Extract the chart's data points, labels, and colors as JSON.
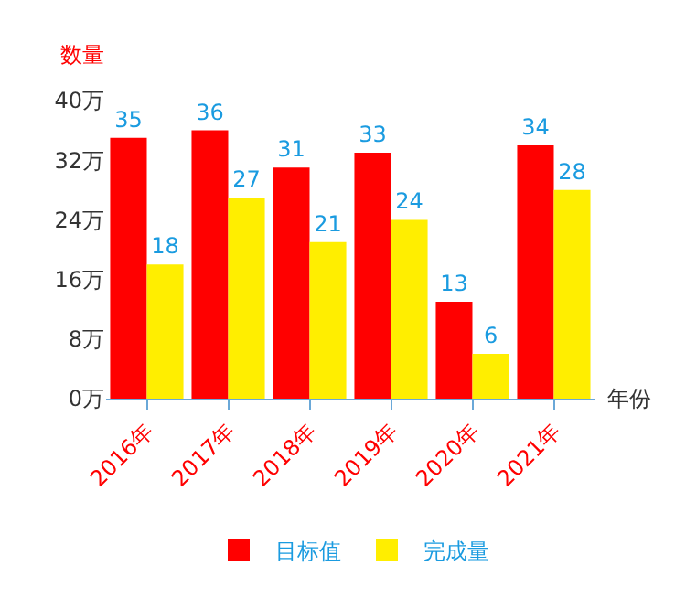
{
  "chart_data": {
    "type": "bar",
    "ylabel": "数量",
    "xlabel": "年份",
    "categories": [
      "2016年",
      "2017年",
      "2018年",
      "2019年",
      "2020年",
      "2021年"
    ],
    "series": [
      {
        "name": "目标值",
        "color": "#ff0000",
        "values": [
          35,
          36,
          31,
          33,
          13,
          34
        ]
      },
      {
        "name": "完成量",
        "color": "#ffee00",
        "values": [
          18,
          27,
          21,
          24,
          6,
          28
        ]
      }
    ],
    "ylim": [
      0,
      40
    ],
    "yticks": [
      {
        "value": 0,
        "label": "0万"
      },
      {
        "value": 8,
        "label": "8万"
      },
      {
        "value": 16,
        "label": "16万"
      },
      {
        "value": 24,
        "label": "24万"
      },
      {
        "value": 32,
        "label": "32万"
      },
      {
        "value": 40,
        "label": "40万"
      }
    ],
    "data_labels": true,
    "grid": false,
    "legend": "bottom"
  }
}
